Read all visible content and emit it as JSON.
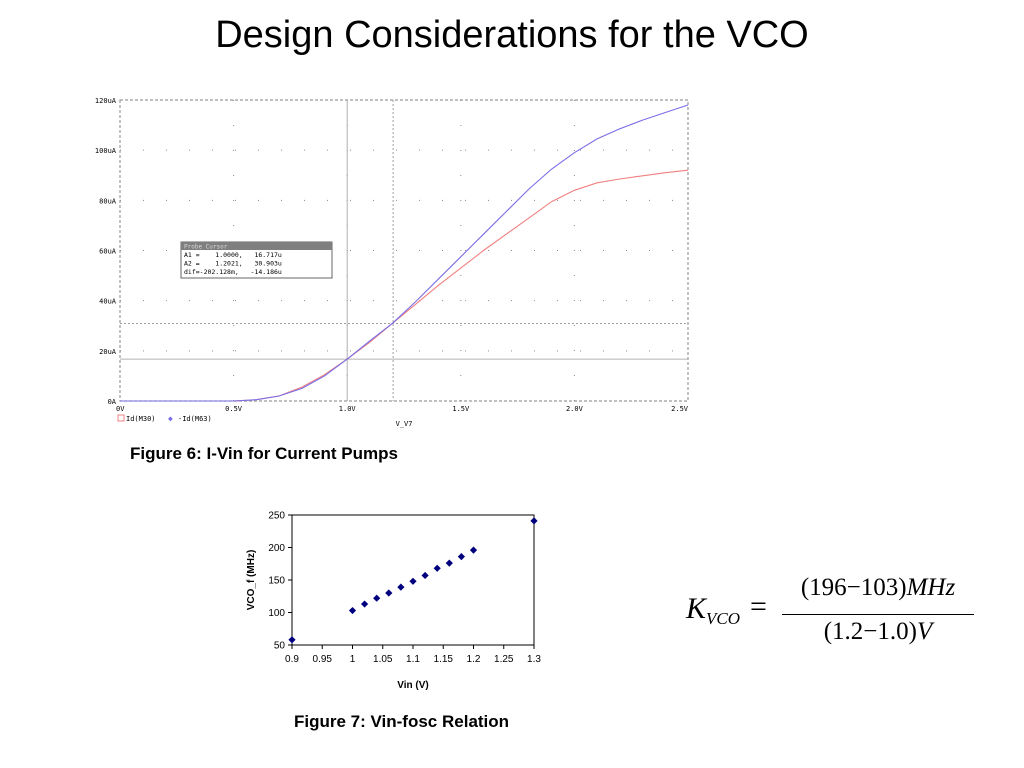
{
  "slide": {
    "title": "Design Considerations for the VCO"
  },
  "figure6": {
    "caption": "Figure 6: I-Vin for Current Pumps",
    "probe_cursor": {
      "title": "Probe Cursor",
      "rows": [
        "A1 =    1.0000,   16.717u",
        "A2 =    1.2021,   30.903u",
        "dif=-202.128m,   -14.186u"
      ]
    },
    "legend": [
      {
        "label": "Id(M30)",
        "color": "#f08080"
      },
      {
        "label": "-Id(M63)",
        "color": "#7a6ee8"
      }
    ]
  },
  "figure7": {
    "caption": "Figure 7: Vin-fosc Relation"
  },
  "formula": {
    "k": "K",
    "k_sub": "VCO",
    "eq": "=",
    "numerator": "(196−103)",
    "numerator_unit": "MHz",
    "denominator": "(1.2−1.0)",
    "denominator_unit": "V"
  },
  "chart_data": [
    {
      "type": "line",
      "xlabel": "V_V7",
      "xlim": [
        0,
        2.5
      ],
      "ylim": [
        0,
        120
      ],
      "x_ticks": [
        0,
        0.5,
        1.0,
        1.5,
        2.0,
        2.5
      ],
      "x_tick_labels": [
        "0V",
        "0.5V",
        "1.0V",
        "1.5V",
        "2.0V",
        "2.5V"
      ],
      "y_ticks": [
        0,
        20,
        40,
        60,
        80,
        100,
        120
      ],
      "y_tick_labels": [
        "0A",
        "20uA",
        "40uA",
        "60uA",
        "80uA",
        "100uA",
        "120uA"
      ],
      "grid": true,
      "legend_position": "bottom-left",
      "cursors": {
        "x": [
          1.0,
          1.2021
        ],
        "y": [
          16.717,
          30.903
        ]
      },
      "x": [
        0,
        0.5,
        0.6,
        0.7,
        0.8,
        0.9,
        1.0,
        1.1,
        1.2,
        1.3,
        1.4,
        1.5,
        1.6,
        1.7,
        1.8,
        1.9,
        2.0,
        2.1,
        2.2,
        2.3,
        2.4,
        2.5
      ],
      "series": [
        {
          "name": "Id(M30)",
          "color": "#f08080",
          "values": [
            0,
            0,
            0.5,
            2,
            5.5,
            10.5,
            16.7,
            23.5,
            31,
            38.5,
            46,
            53,
            60,
            66.5,
            73,
            79.5,
            84,
            87,
            88.5,
            89.8,
            91,
            92
          ]
        },
        {
          "name": "-Id(M63)",
          "color": "#7a6ee8",
          "values": [
            0,
            0,
            0.5,
            2,
            5,
            10,
            16.7,
            24,
            31,
            39.5,
            48.5,
            57.5,
            66.5,
            75.5,
            84.5,
            92.5,
            99,
            104.5,
            108.5,
            112,
            115,
            118
          ]
        }
      ]
    },
    {
      "type": "scatter",
      "xlabel": "Vin (V)",
      "ylabel": "VCO_f (MHz)",
      "xlim": [
        0.9,
        1.3
      ],
      "ylim": [
        50,
        250
      ],
      "x_ticks": [
        0.9,
        0.95,
        1,
        1.05,
        1.1,
        1.15,
        1.2,
        1.25,
        1.3
      ],
      "x_tick_labels": [
        "0.9",
        "0.95",
        "1",
        "1.05",
        "1.1",
        "1.15",
        "1.2",
        "1.25",
        "1.3"
      ],
      "y_ticks": [
        50,
        100,
        150,
        200,
        250
      ],
      "y_tick_labels": [
        "50",
        "100",
        "150",
        "200",
        "250"
      ],
      "marker_color": "#00007f",
      "x": [
        0.9,
        1.0,
        1.02,
        1.04,
        1.06,
        1.08,
        1.1,
        1.12,
        1.14,
        1.16,
        1.18,
        1.2,
        1.3
      ],
      "y": [
        58,
        103,
        113,
        122,
        130,
        139,
        148,
        157,
        168,
        176,
        186,
        196,
        241
      ]
    }
  ]
}
